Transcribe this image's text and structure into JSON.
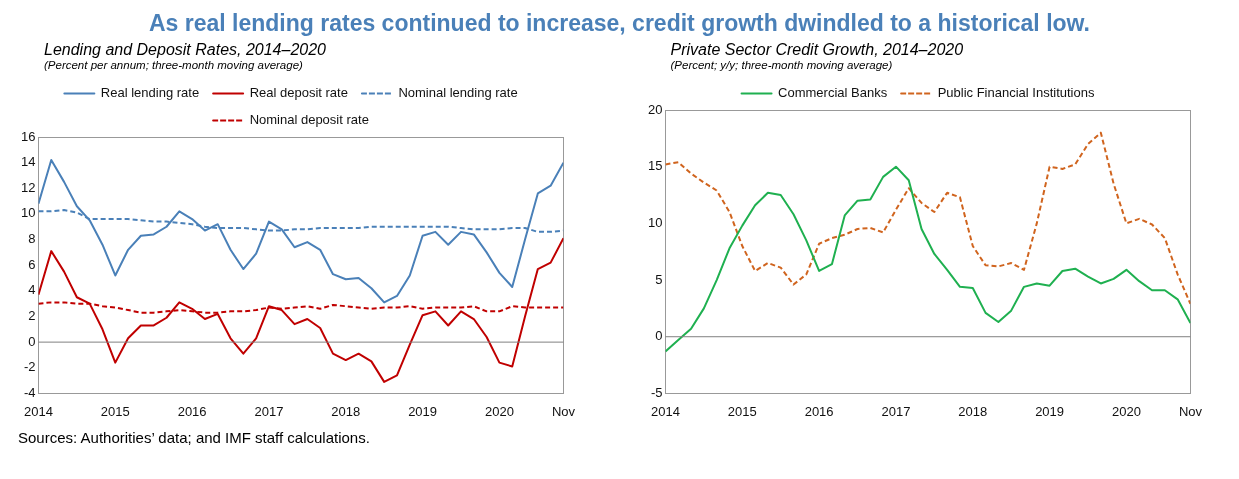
{
  "chart_data": [
    {
      "type": "other",
      "title": "As real lending rates continued to increase, credit growth dwindled to a historical low."
    },
    {
      "type": "line",
      "title": "Lending and Deposit Rates, 2014–2020",
      "subtitle": "(Percent per annum; three-month moving average)",
      "annotations": [
        "Sources: Authorities’ data; and IMF staff calculations."
      ],
      "x": [
        "2014-01",
        "2014-03",
        "2014-05",
        "2014-07",
        "2014-09",
        "2014-11",
        "2015-01",
        "2015-03",
        "2015-05",
        "2015-07",
        "2015-09",
        "2015-11",
        "2016-01",
        "2016-03",
        "2016-05",
        "2016-07",
        "2016-09",
        "2016-11",
        "2017-01",
        "2017-03",
        "2017-05",
        "2017-07",
        "2017-09",
        "2017-11",
        "2018-01",
        "2018-03",
        "2018-05",
        "2018-07",
        "2018-09",
        "2018-11",
        "2019-01",
        "2019-03",
        "2019-05",
        "2019-07",
        "2019-09",
        "2019-11",
        "2020-01",
        "2020-03",
        "2020-05",
        "2020-07",
        "2020-09",
        "2020-11"
      ],
      "series": [
        {
          "name": "Real lending rate",
          "color": "#4a80b8",
          "line_style": "solid",
          "values": [
            10.8,
            14.2,
            12.5,
            10.6,
            9.5,
            7.6,
            5.2,
            7.2,
            8.3,
            8.4,
            9.0,
            10.2,
            9.6,
            8.7,
            9.2,
            7.2,
            5.7,
            6.9,
            9.4,
            8.8,
            7.4,
            7.8,
            7.2,
            5.3,
            4.9,
            5.0,
            4.2,
            3.1,
            3.6,
            5.2,
            8.3,
            8.6,
            7.6,
            8.6,
            8.4,
            7.0,
            5.4,
            4.3,
            8.0,
            11.6,
            12.2,
            14.0
          ]
        },
        {
          "name": "Real deposit rate",
          "color": "#c00000",
          "line_style": "solid",
          "values": [
            3.7,
            7.1,
            5.5,
            3.5,
            3.0,
            1.0,
            -1.6,
            0.3,
            1.3,
            1.3,
            1.9,
            3.1,
            2.6,
            1.8,
            2.2,
            0.3,
            -0.9,
            0.3,
            2.8,
            2.5,
            1.4,
            1.8,
            1.1,
            -0.9,
            -1.4,
            -0.9,
            -1.5,
            -3.1,
            -2.6,
            -0.2,
            2.1,
            2.4,
            1.3,
            2.4,
            1.8,
            0.4,
            -1.6,
            -1.9,
            2.0,
            5.7,
            6.2,
            8.1
          ]
        },
        {
          "name": "Nominal lending rate",
          "color": "#4a80b8",
          "line_style": "dashed",
          "values": [
            10.2,
            10.2,
            10.3,
            10.1,
            9.6,
            9.6,
            9.6,
            9.6,
            9.5,
            9.4,
            9.4,
            9.3,
            9.2,
            9.0,
            8.9,
            8.9,
            8.9,
            8.8,
            8.7,
            8.7,
            8.8,
            8.8,
            8.9,
            8.9,
            8.9,
            8.9,
            9.0,
            9.0,
            9.0,
            9.0,
            9.0,
            9.0,
            9.0,
            8.9,
            8.8,
            8.8,
            8.8,
            8.9,
            8.9,
            8.6,
            8.6,
            8.7
          ]
        },
        {
          "name": "Nominal deposit rate",
          "color": "#c00000",
          "line_style": "dashed",
          "values": [
            3.0,
            3.1,
            3.1,
            3.0,
            3.0,
            2.8,
            2.7,
            2.5,
            2.3,
            2.3,
            2.4,
            2.5,
            2.4,
            2.3,
            2.3,
            2.4,
            2.4,
            2.5,
            2.7,
            2.6,
            2.7,
            2.8,
            2.6,
            2.9,
            2.8,
            2.7,
            2.6,
            2.7,
            2.7,
            2.8,
            2.6,
            2.7,
            2.7,
            2.7,
            2.8,
            2.4,
            2.4,
            2.8,
            2.7,
            2.7,
            2.7,
            2.7
          ]
        }
      ],
      "xlim": [
        "2014-01",
        "2020-11"
      ],
      "xticks": [
        {
          "value": "2014-01",
          "label": "2014"
        },
        {
          "value": "2015-01",
          "label": "2015"
        },
        {
          "value": "2016-01",
          "label": "2016"
        },
        {
          "value": "2017-01",
          "label": "2017"
        },
        {
          "value": "2018-01",
          "label": "2018"
        },
        {
          "value": "2019-01",
          "label": "2019"
        },
        {
          "value": "2020-01",
          "label": "2020"
        },
        {
          "value": "2020-11",
          "label": "Nov"
        }
      ],
      "ylim": [
        -4,
        16
      ],
      "yticks": [
        -4,
        -2,
        0,
        2,
        4,
        6,
        8,
        10,
        12,
        14,
        16
      ],
      "ref_lines": [
        {
          "axis": "y",
          "value": 0,
          "color": "#808080"
        }
      ],
      "grid": false,
      "legend": "top"
    },
    {
      "type": "line",
      "title": "Private Sector Credit Growth, 2014–2020",
      "subtitle": "(Percent; y/y; three-month moving average)",
      "x": [
        "2014-01",
        "2014-03",
        "2014-05",
        "2014-07",
        "2014-09",
        "2014-11",
        "2015-01",
        "2015-03",
        "2015-05",
        "2015-07",
        "2015-09",
        "2015-11",
        "2016-01",
        "2016-03",
        "2016-05",
        "2016-07",
        "2016-09",
        "2016-11",
        "2017-01",
        "2017-03",
        "2017-05",
        "2017-07",
        "2017-09",
        "2017-11",
        "2018-01",
        "2018-03",
        "2018-05",
        "2018-07",
        "2018-09",
        "2018-11",
        "2019-01",
        "2019-03",
        "2019-05",
        "2019-07",
        "2019-09",
        "2019-11",
        "2020-01",
        "2020-03",
        "2020-05",
        "2020-07",
        "2020-09",
        "2020-11"
      ],
      "series": [
        {
          "name": "Commercial Banks",
          "color": "#1fb050",
          "line_style": "solid",
          "values": [
            -1.3,
            -0.3,
            0.7,
            2.5,
            5.0,
            7.8,
            9.8,
            11.6,
            12.7,
            12.5,
            10.8,
            8.5,
            5.8,
            6.4,
            10.7,
            12.0,
            12.1,
            14.1,
            15.0,
            13.8,
            9.5,
            7.3,
            5.9,
            4.4,
            4.3,
            2.1,
            1.3,
            2.3,
            4.4,
            4.7,
            4.5,
            5.8,
            6.0,
            5.3,
            4.7,
            5.1,
            5.9,
            4.9,
            4.1,
            4.1,
            3.3,
            1.2
          ]
        },
        {
          "name": "Public Financial Institutions",
          "color": "#d0641e",
          "line_style": "dashed",
          "values": [
            15.2,
            15.4,
            14.4,
            13.6,
            12.9,
            11.0,
            8.0,
            5.8,
            6.5,
            6.1,
            4.6,
            5.5,
            8.2,
            8.7,
            9.0,
            9.5,
            9.6,
            9.2,
            11.2,
            13.1,
            11.8,
            11.0,
            12.7,
            12.3,
            8.0,
            6.3,
            6.2,
            6.5,
            5.9,
            10.0,
            15.0,
            14.8,
            15.2,
            17.0,
            18.0,
            13.5,
            10.0,
            10.4,
            9.9,
            8.7,
            5.5,
            2.9
          ]
        }
      ],
      "xlim": [
        "2014-01",
        "2020-11"
      ],
      "xticks": [
        {
          "value": "2014-01",
          "label": "2014"
        },
        {
          "value": "2015-01",
          "label": "2015"
        },
        {
          "value": "2016-01",
          "label": "2016"
        },
        {
          "value": "2017-01",
          "label": "2017"
        },
        {
          "value": "2018-01",
          "label": "2018"
        },
        {
          "value": "2019-01",
          "label": "2019"
        },
        {
          "value": "2020-01",
          "label": "2020"
        },
        {
          "value": "2020-11",
          "label": "Nov"
        }
      ],
      "ylim": [
        -5,
        20
      ],
      "yticks": [
        -5,
        0,
        5,
        10,
        15,
        20
      ],
      "ref_lines": [
        {
          "axis": "y",
          "value": 0,
          "color": "#808080"
        }
      ],
      "grid": false,
      "legend": "top"
    }
  ]
}
